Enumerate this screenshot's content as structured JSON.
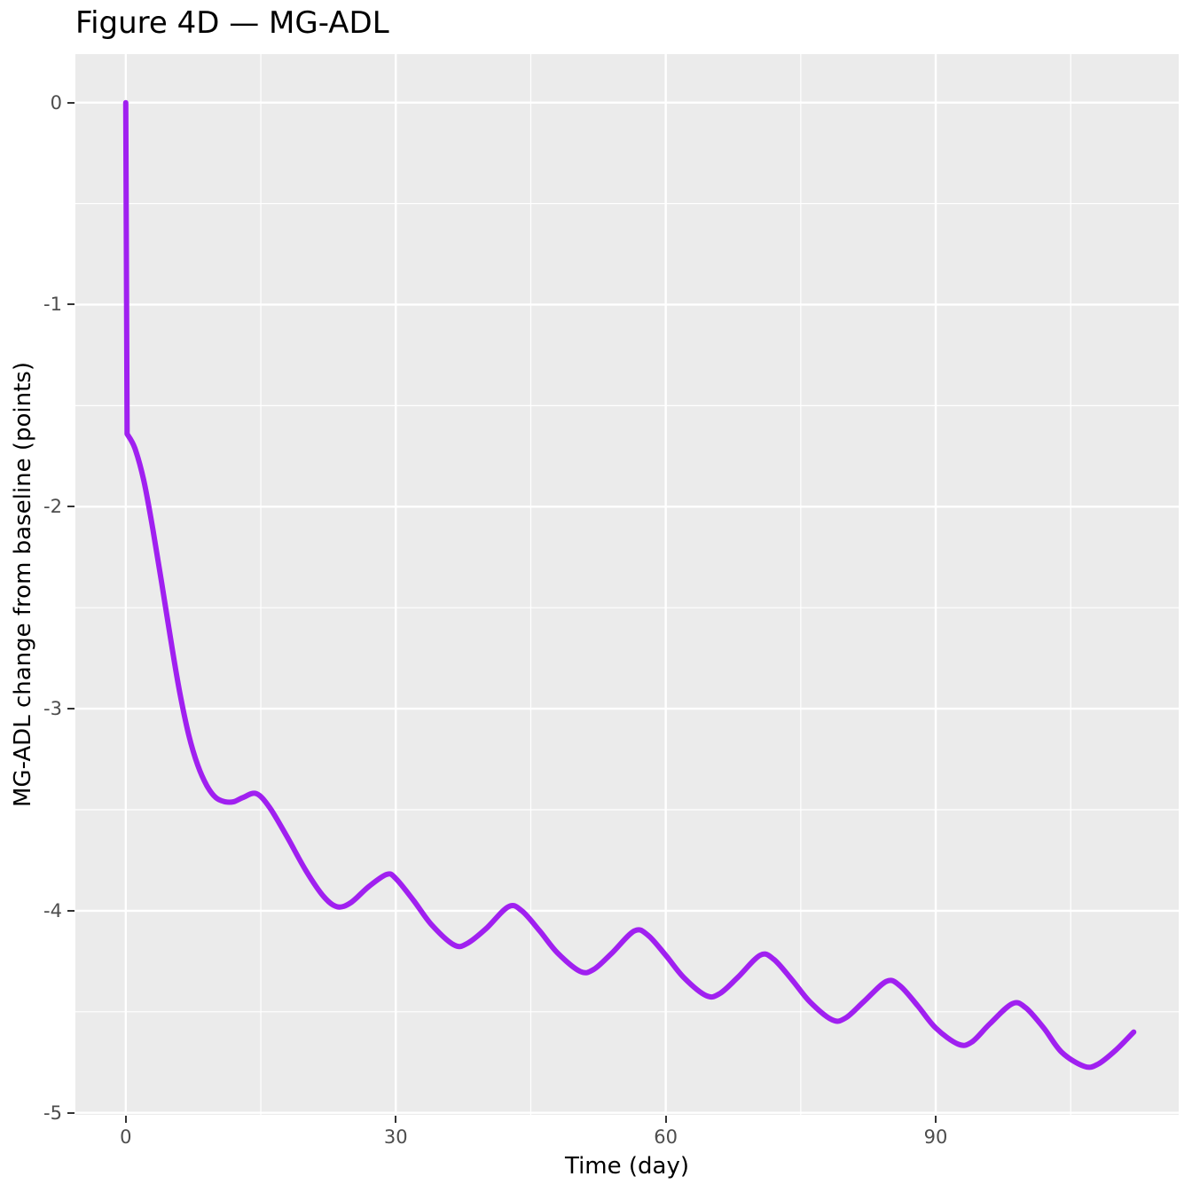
{
  "figure": {
    "title": "Figure 4D — MG-ADL"
  },
  "chart_data": {
    "type": "line",
    "title": "Figure 4D — MG-ADL",
    "xlabel": "Time (day)",
    "ylabel": "MG-ADL change from baseline (points)",
    "x_ticks": [
      0,
      30,
      60,
      90
    ],
    "x_minor_ticks": [
      15,
      45,
      75,
      105
    ],
    "y_ticks": [
      0,
      -1,
      -2,
      -3,
      -4,
      -5
    ],
    "y_minor_ticks": [
      -0.5,
      -1.5,
      -2.5,
      -3.5,
      -4.5
    ],
    "xlim": [
      -5.6,
      117.0
    ],
    "ylim": [
      -5.01,
      0.24
    ],
    "grid": true,
    "legend_position": "none",
    "style": {
      "panel_bg": "#EBEBEB",
      "grid_color": "#FFFFFF",
      "tick_label_color": "#4D4D4D",
      "tick_mark_color": "#333333",
      "axis_title_color": "#000000",
      "title_color": "#000000",
      "line_color": "#A020F0",
      "line_width": 6
    },
    "series": [
      {
        "name": "MG-ADL change from baseline",
        "color": "#A020F0",
        "points": [
          [
            0,
            0
          ],
          [
            0.15,
            -1.64
          ],
          [
            1,
            -1.71
          ],
          [
            2,
            -1.87
          ],
          [
            3,
            -2.11
          ],
          [
            4,
            -2.38
          ],
          [
            5,
            -2.66
          ],
          [
            6,
            -2.92
          ],
          [
            7,
            -3.13
          ],
          [
            8,
            -3.28
          ],
          [
            9,
            -3.38
          ],
          [
            10,
            -3.44
          ],
          [
            11,
            -3.46
          ],
          [
            12,
            -3.46
          ],
          [
            13,
            -3.44
          ],
          [
            14.5,
            -3.42
          ],
          [
            16,
            -3.49
          ],
          [
            18,
            -3.64
          ],
          [
            20,
            -3.8
          ],
          [
            22,
            -3.93
          ],
          [
            23.5,
            -3.98
          ],
          [
            25,
            -3.96
          ],
          [
            27,
            -3.88
          ],
          [
            29,
            -3.82
          ],
          [
            30,
            -3.84
          ],
          [
            32,
            -3.95
          ],
          [
            34,
            -4.07
          ],
          [
            36.5,
            -4.17
          ],
          [
            38,
            -4.16
          ],
          [
            40,
            -4.09
          ],
          [
            42.5,
            -3.98
          ],
          [
            44,
            -4.0
          ],
          [
            46,
            -4.1
          ],
          [
            48,
            -4.21
          ],
          [
            50.5,
            -4.3
          ],
          [
            52,
            -4.29
          ],
          [
            54,
            -4.21
          ],
          [
            56.5,
            -4.1
          ],
          [
            58,
            -4.12
          ],
          [
            60,
            -4.22
          ],
          [
            62,
            -4.33
          ],
          [
            64.5,
            -4.42
          ],
          [
            66,
            -4.41
          ],
          [
            68,
            -4.33
          ],
          [
            70.5,
            -4.22
          ],
          [
            72,
            -4.24
          ],
          [
            74,
            -4.34
          ],
          [
            76,
            -4.45
          ],
          [
            78.5,
            -4.54
          ],
          [
            80,
            -4.53
          ],
          [
            82,
            -4.45
          ],
          [
            84.5,
            -4.35
          ],
          [
            86,
            -4.37
          ],
          [
            88,
            -4.47
          ],
          [
            90,
            -4.58
          ],
          [
            92.5,
            -4.66
          ],
          [
            94,
            -4.65
          ],
          [
            96,
            -4.56
          ],
          [
            98.5,
            -4.46
          ],
          [
            100,
            -4.48
          ],
          [
            102,
            -4.58
          ],
          [
            104,
            -4.7
          ],
          [
            106.5,
            -4.77
          ],
          [
            108,
            -4.76
          ],
          [
            110,
            -4.69
          ],
          [
            112,
            -4.6
          ]
        ]
      }
    ]
  }
}
